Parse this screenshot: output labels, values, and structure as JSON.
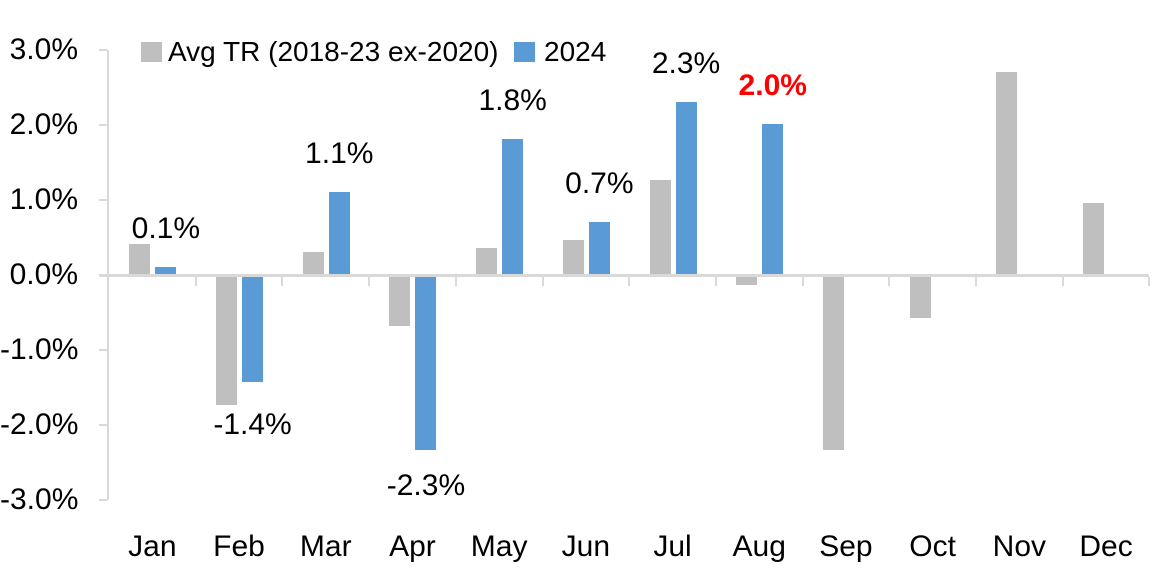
{
  "chart_data": {
    "type": "bar",
    "title": "",
    "categories": [
      "Jan",
      "Feb",
      "Mar",
      "Apr",
      "May",
      "Jun",
      "Jul",
      "Aug",
      "Sep",
      "Oct",
      "Nov",
      "Dec"
    ],
    "series": [
      {
        "name": "Avg TR (2018-23 ex-2020)",
        "color": "#bfbfbf",
        "values": [
          0.4,
          -1.7,
          0.3,
          -0.65,
          0.35,
          0.45,
          1.25,
          -0.1,
          -2.3,
          -0.55,
          2.7,
          0.95
        ]
      },
      {
        "name": "2024",
        "color": "#5b9bd5",
        "values": [
          0.1,
          -1.4,
          1.1,
          -2.3,
          1.8,
          0.7,
          2.3,
          2.0,
          null,
          null,
          null,
          null
        ],
        "data_labels": [
          {
            "text": "0.1%",
            "color": "#000000",
            "bold": false
          },
          {
            "text": "-1.4%",
            "color": "#000000",
            "bold": false
          },
          {
            "text": "1.1%",
            "color": "#000000",
            "bold": false
          },
          {
            "text": "-2.3%",
            "color": "#000000",
            "bold": false
          },
          {
            "text": "1.8%",
            "color": "#000000",
            "bold": false
          },
          {
            "text": "0.7%",
            "color": "#000000",
            "bold": false
          },
          {
            "text": "2.3%",
            "color": "#000000",
            "bold": false
          },
          {
            "text": "2.0%",
            "color": "#ff0000",
            "bold": true
          },
          null,
          null,
          null,
          null
        ]
      }
    ],
    "y_axis": {
      "tick_labels": [
        "3.0%",
        "2.0%",
        "1.0%",
        "0.0%",
        "-1.0%",
        "-2.0%",
        "-3.0%"
      ],
      "min": -3.0,
      "max": 3.0,
      "step": 1.0
    },
    "x_axis": {
      "label": ""
    },
    "legend": {
      "position": "top",
      "entries": [
        {
          "label": "Avg TR (2018-23 ex-2020)",
          "color": "#bfbfbf"
        },
        {
          "label": "2024",
          "color": "#5b9bd5"
        }
      ]
    },
    "colors": {
      "axis": "#d9d9d9",
      "text": "#000000",
      "highlight": "#ff0000"
    },
    "grid": false
  }
}
